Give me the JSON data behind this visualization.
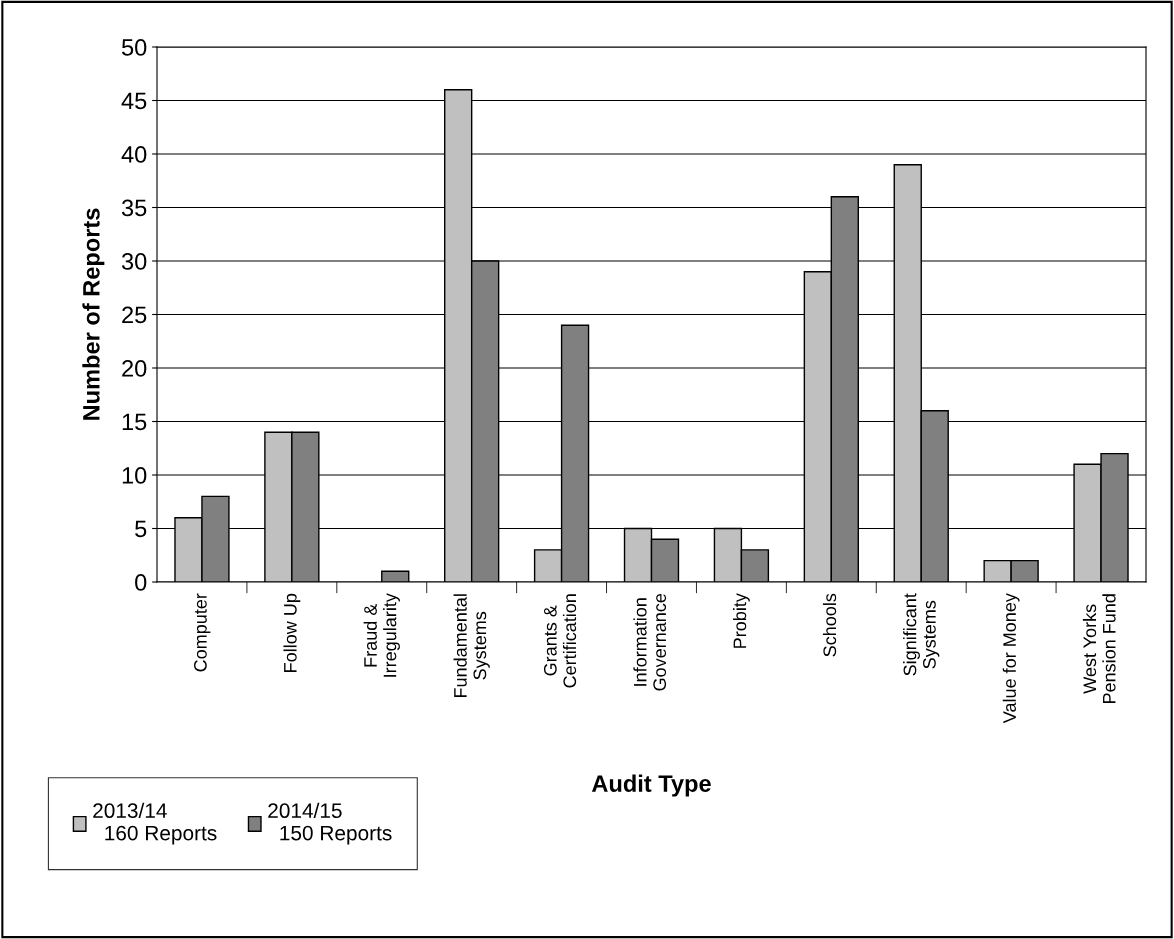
{
  "chart_data": {
    "type": "bar",
    "xlabel": "Audit Type",
    "ylabel": "Number of Reports",
    "categories": [
      "Computer",
      "Follow Up",
      "Fraud &\nIrregularity",
      "Fundamental\nSystems",
      "Grants &\nCertification",
      "Information\nGovernance",
      "Probity",
      "Schools",
      "Significant\nSystems",
      "Value for Money",
      "West Yorks\nPension Fund"
    ],
    "series": [
      {
        "name": "2013/14\n  160 Reports",
        "color": "#c0c0c0",
        "values": [
          6,
          14,
          0,
          46,
          3,
          5,
          5,
          29,
          39,
          2,
          11
        ]
      },
      {
        "name": "2014/15\n  150 Reports",
        "color": "#808080",
        "values": [
          8,
          14,
          1,
          30,
          24,
          4,
          3,
          36,
          16,
          2,
          12
        ]
      }
    ],
    "ylim": [
      0,
      50
    ],
    "yticks": [
      0,
      5,
      10,
      15,
      20,
      25,
      30,
      35,
      40,
      45,
      50
    ],
    "grid": "y",
    "legend": "bottom left"
  }
}
